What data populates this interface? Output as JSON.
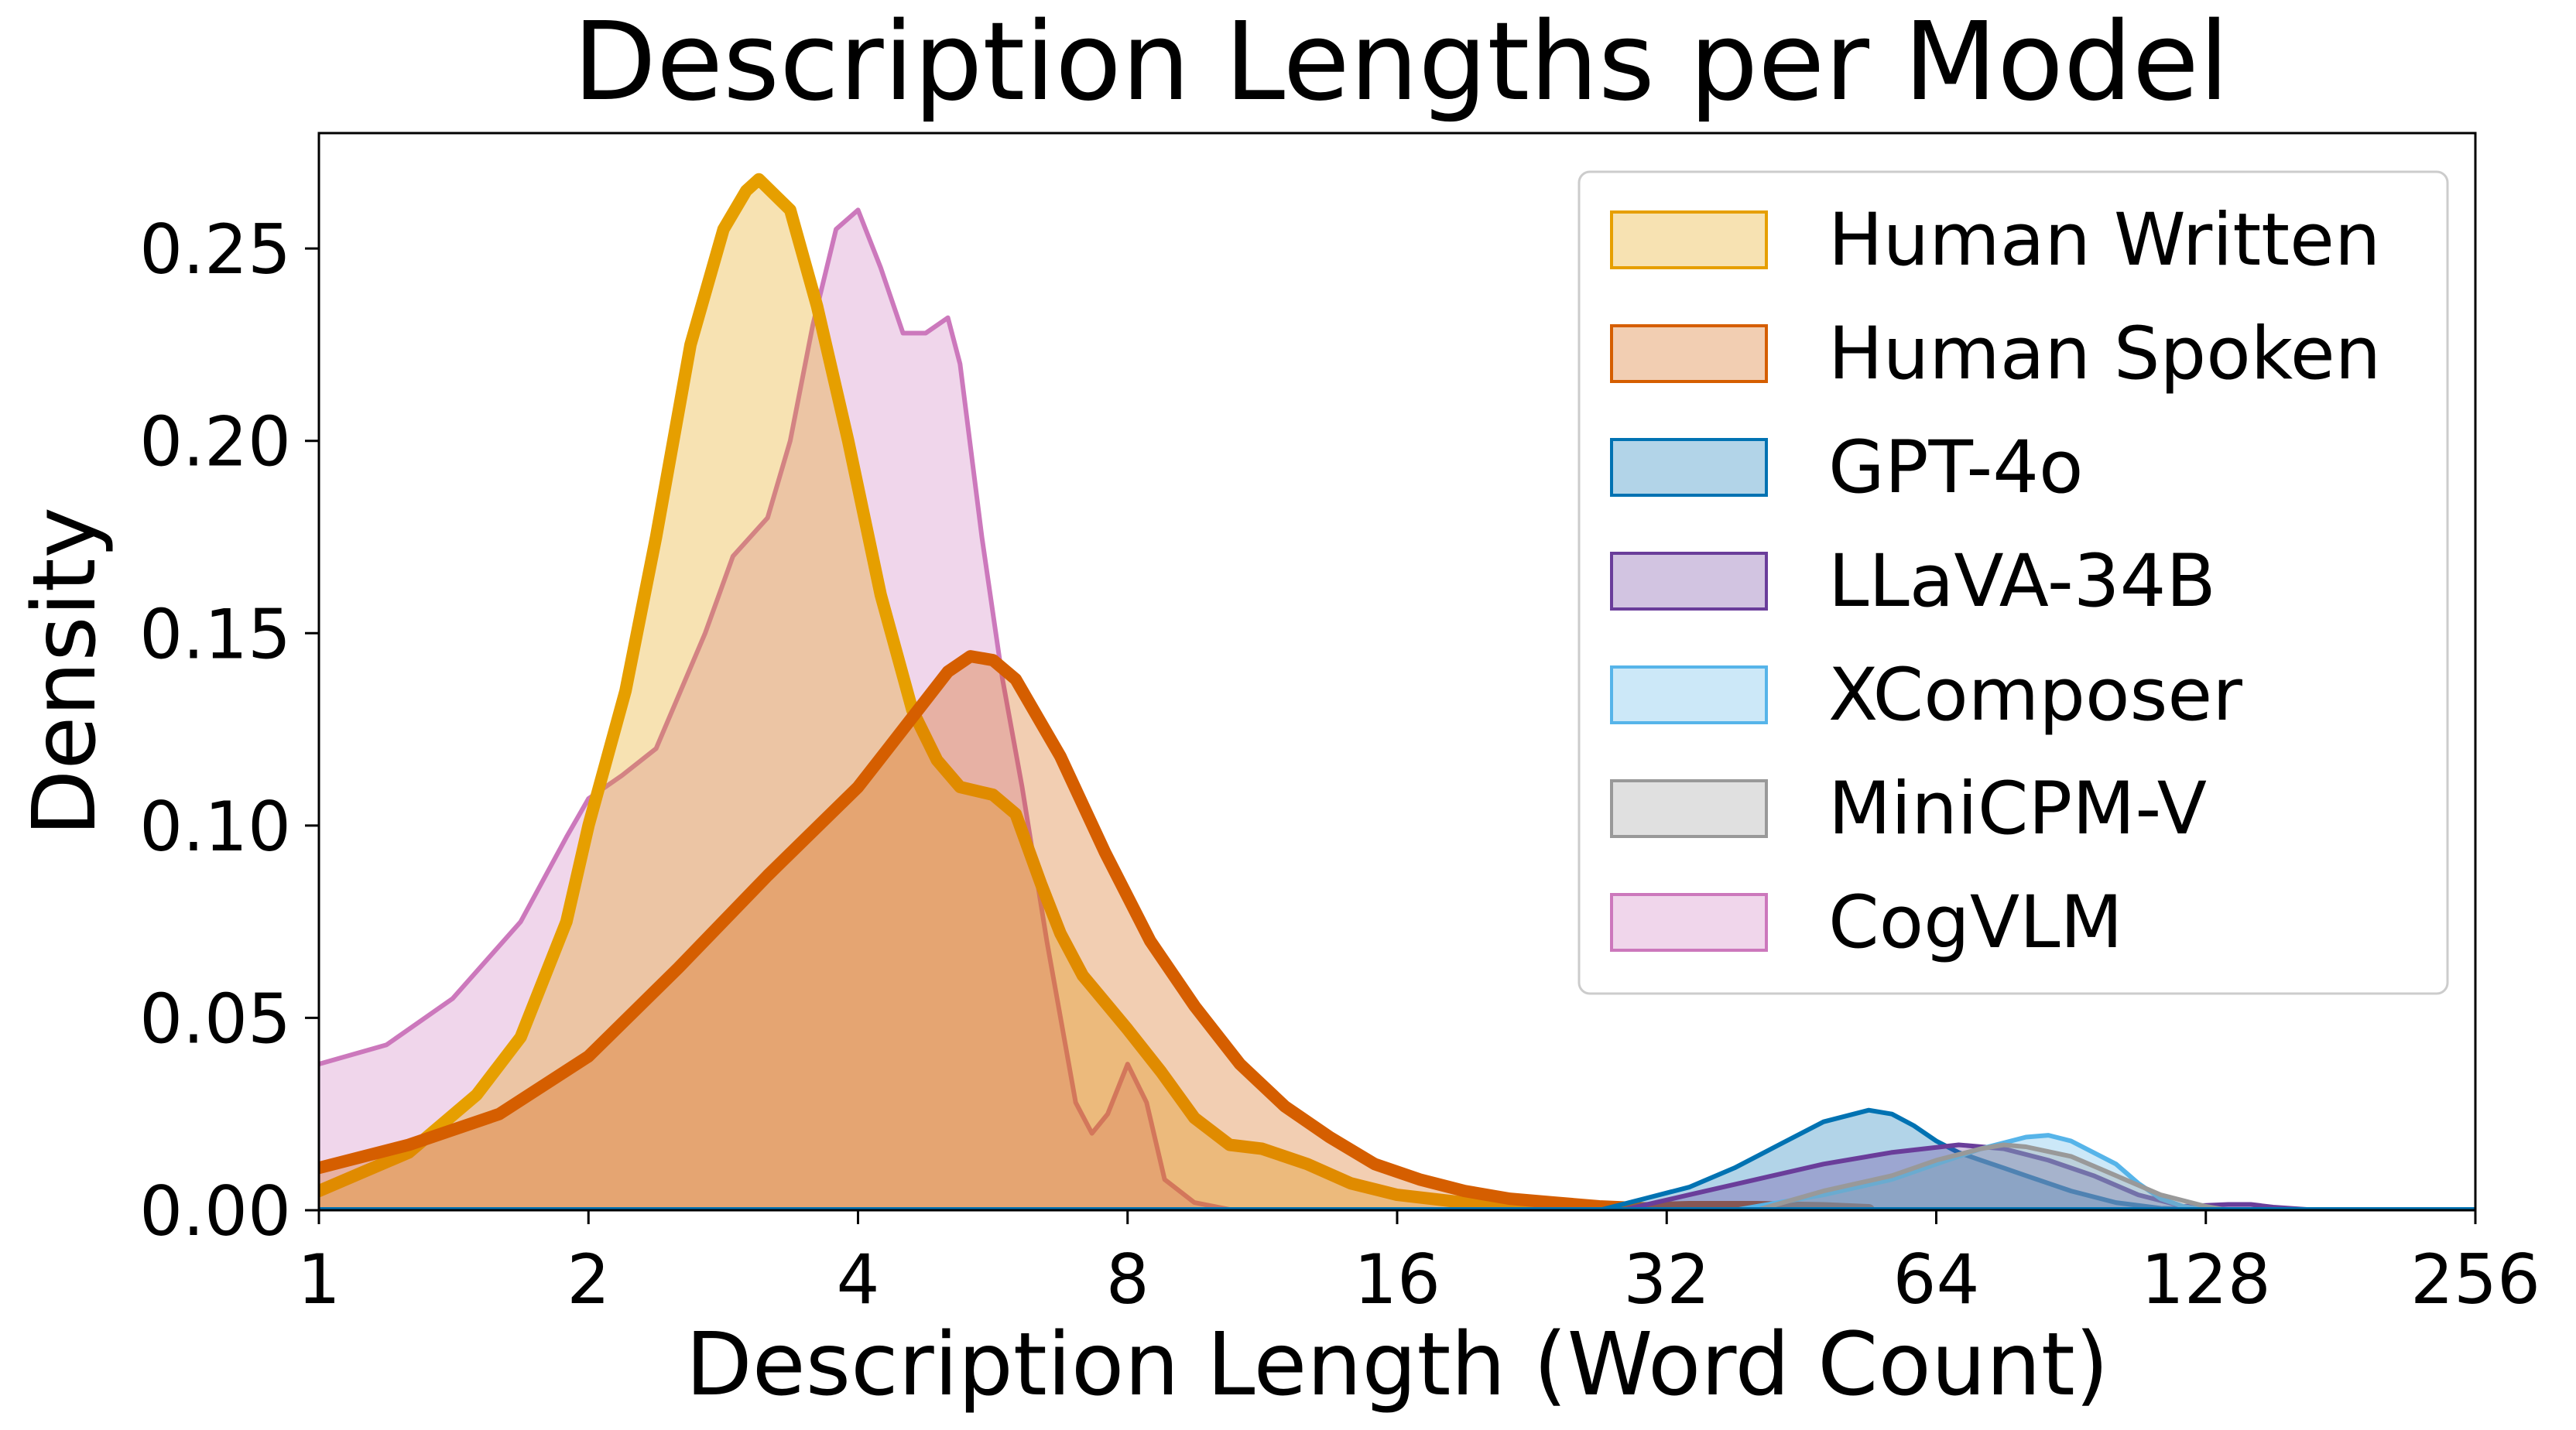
{
  "chart_data": {
    "type": "area",
    "title": "Description Lengths per Model",
    "xlabel": "Description Length (Word Count)",
    "ylabel": "Density",
    "xscale": "log2",
    "xlim": [
      1,
      256
    ],
    "ylim": [
      0,
      0.28
    ],
    "grid": false,
    "legend_position": "top-right",
    "x_ticks": [
      1,
      2,
      4,
      8,
      16,
      32,
      64,
      128,
      256
    ],
    "x_tick_labels": [
      "1",
      "2",
      "4",
      "8",
      "16",
      "32",
      "64",
      "128",
      "256"
    ],
    "y_ticks": [
      0,
      0.05,
      0.1,
      0.15,
      0.2,
      0.25
    ],
    "y_tick_labels": [
      "0.00",
      "0.05",
      "0.10",
      "0.15",
      "0.20",
      "0.25"
    ],
    "series": [
      {
        "name": "CogVLM",
        "color": "#CC78BC",
        "emphasized": false,
        "points": [
          [
            1,
            0.038
          ],
          [
            1.19,
            0.043
          ],
          [
            1.41,
            0.055
          ],
          [
            1.68,
            0.075
          ],
          [
            1.89,
            0.097
          ],
          [
            2,
            0.107
          ],
          [
            2.18,
            0.113
          ],
          [
            2.38,
            0.12
          ],
          [
            2.7,
            0.15
          ],
          [
            2.9,
            0.17
          ],
          [
            3.17,
            0.18
          ],
          [
            3.36,
            0.2
          ],
          [
            3.56,
            0.23
          ],
          [
            3.78,
            0.255
          ],
          [
            4,
            0.26
          ],
          [
            4.24,
            0.245
          ],
          [
            4.49,
            0.228
          ],
          [
            4.76,
            0.228
          ],
          [
            5.04,
            0.232
          ],
          [
            5.2,
            0.22
          ],
          [
            5.5,
            0.175
          ],
          [
            5.8,
            0.138
          ],
          [
            6.1,
            0.11
          ],
          [
            6.5,
            0.07
          ],
          [
            7.0,
            0.028
          ],
          [
            7.3,
            0.02
          ],
          [
            7.6,
            0.025
          ],
          [
            8,
            0.038
          ],
          [
            8.4,
            0.028
          ],
          [
            8.8,
            0.008
          ],
          [
            9.5,
            0.002
          ],
          [
            10.5,
            0
          ]
        ]
      },
      {
        "name": "Human Written",
        "color": "#E69F00",
        "emphasized": true,
        "points": [
          [
            1,
            0.005
          ],
          [
            1.26,
            0.015
          ],
          [
            1.5,
            0.03
          ],
          [
            1.68,
            0.045
          ],
          [
            1.89,
            0.075
          ],
          [
            2,
            0.1
          ],
          [
            2.2,
            0.135
          ],
          [
            2.38,
            0.175
          ],
          [
            2.6,
            0.225
          ],
          [
            2.83,
            0.255
          ],
          [
            3,
            0.265
          ],
          [
            3.1,
            0.268
          ],
          [
            3.36,
            0.26
          ],
          [
            3.6,
            0.235
          ],
          [
            3.9,
            0.2
          ],
          [
            4.24,
            0.16
          ],
          [
            4.6,
            0.13
          ],
          [
            4.9,
            0.117
          ],
          [
            5.2,
            0.11
          ],
          [
            5.66,
            0.108
          ],
          [
            6.0,
            0.103
          ],
          [
            6.4,
            0.085
          ],
          [
            6.73,
            0.072
          ],
          [
            7.13,
            0.061
          ],
          [
            8,
            0.047
          ],
          [
            8.72,
            0.036
          ],
          [
            9.5,
            0.024
          ],
          [
            10.4,
            0.017
          ],
          [
            11.3,
            0.016
          ],
          [
            12.7,
            0.012
          ],
          [
            14.2,
            0.007
          ],
          [
            16,
            0.004
          ],
          [
            19,
            0.002
          ],
          [
            22.6,
            0.001
          ],
          [
            26,
            0
          ]
        ]
      },
      {
        "name": "Human Spoken",
        "color": "#D55E00",
        "emphasized": true,
        "points": [
          [
            1,
            0.011
          ],
          [
            1.26,
            0.017
          ],
          [
            1.59,
            0.025
          ],
          [
            2,
            0.04
          ],
          [
            2.52,
            0.063
          ],
          [
            3.17,
            0.087
          ],
          [
            4,
            0.11
          ],
          [
            4.49,
            0.125
          ],
          [
            5.04,
            0.14
          ],
          [
            5.34,
            0.144
          ],
          [
            5.66,
            0.143
          ],
          [
            6.0,
            0.138
          ],
          [
            6.73,
            0.118
          ],
          [
            7.55,
            0.093
          ],
          [
            8.48,
            0.07
          ],
          [
            9.51,
            0.053
          ],
          [
            10.68,
            0.038
          ],
          [
            11.99,
            0.027
          ],
          [
            13.45,
            0.019
          ],
          [
            15.1,
            0.012
          ],
          [
            16.95,
            0.008
          ],
          [
            19.03,
            0.005
          ],
          [
            21.36,
            0.003
          ],
          [
            23.97,
            0.002
          ],
          [
            26.91,
            0.001
          ],
          [
            30.2,
            0.0005
          ],
          [
            33.9,
            0.0008
          ],
          [
            40.3,
            0.0008
          ],
          [
            47.9,
            0.0005
          ],
          [
            53.8,
            0
          ]
        ]
      },
      {
        "name": "GPT-4o",
        "color": "#0072B2",
        "emphasized": false,
        "points": [
          [
            26.9,
            0
          ],
          [
            30.2,
            0.003
          ],
          [
            33.9,
            0.006
          ],
          [
            38.1,
            0.011
          ],
          [
            42.7,
            0.017
          ],
          [
            47.9,
            0.023
          ],
          [
            53.8,
            0.026
          ],
          [
            57.1,
            0.025
          ],
          [
            60.4,
            0.022
          ],
          [
            64,
            0.018
          ],
          [
            67.8,
            0.015
          ],
          [
            71.8,
            0.013
          ],
          [
            76.1,
            0.011
          ],
          [
            80.6,
            0.009
          ],
          [
            85.4,
            0.007
          ],
          [
            90.5,
            0.005
          ],
          [
            101.6,
            0.002
          ],
          [
            114,
            0.0005
          ],
          [
            128,
            0.0002
          ],
          [
            143.7,
            0
          ]
        ]
      },
      {
        "name": "LLaVA-34B",
        "color": "#6A3D9A",
        "emphasized": false,
        "points": [
          [
            28.5,
            0
          ],
          [
            33.9,
            0.004
          ],
          [
            40.3,
            0.008
          ],
          [
            47.9,
            0.012
          ],
          [
            57,
            0.015
          ],
          [
            67.8,
            0.017
          ],
          [
            76.1,
            0.016
          ],
          [
            85.4,
            0.013
          ],
          [
            95.9,
            0.009
          ],
          [
            107.6,
            0.004
          ],
          [
            120.8,
            0.001
          ],
          [
            135.6,
            0.0015
          ],
          [
            143.7,
            0.0015
          ],
          [
            152.2,
            0.0008
          ],
          [
            170.9,
            0
          ]
        ]
      },
      {
        "name": "XComposer",
        "color": "#56B4E9",
        "emphasized": false,
        "points": [
          [
            38.1,
            0
          ],
          [
            47.9,
            0.004
          ],
          [
            57.1,
            0.008
          ],
          [
            64,
            0.012
          ],
          [
            71.8,
            0.016
          ],
          [
            80.6,
            0.019
          ],
          [
            85.4,
            0.0195
          ],
          [
            90.5,
            0.018
          ],
          [
            101.6,
            0.012
          ],
          [
            107.6,
            0.007
          ],
          [
            114,
            0.003
          ],
          [
            120.8,
            0.001
          ],
          [
            128,
            0
          ]
        ]
      },
      {
        "name": "MiniCPM-V",
        "color": "#999999",
        "emphasized": false,
        "points": [
          [
            40.3,
            0
          ],
          [
            47.9,
            0.005
          ],
          [
            57.1,
            0.009
          ],
          [
            64,
            0.013
          ],
          [
            71.8,
            0.016
          ],
          [
            76.1,
            0.017
          ],
          [
            80.6,
            0.0165
          ],
          [
            90.5,
            0.014
          ],
          [
            101.6,
            0.009
          ],
          [
            114,
            0.004
          ],
          [
            128,
            0.001
          ],
          [
            135.6,
            0
          ]
        ]
      }
    ],
    "legend": [
      {
        "name": "Human Written",
        "color": "#E69F00"
      },
      {
        "name": "Human Spoken",
        "color": "#D55E00"
      },
      {
        "name": "GPT-4o",
        "color": "#0072B2"
      },
      {
        "name": "LLaVA-34B",
        "color": "#6A3D9A"
      },
      {
        "name": "XComposer",
        "color": "#56B4E9"
      },
      {
        "name": "MiniCPM-V",
        "color": "#999999"
      },
      {
        "name": "CogVLM",
        "color": "#CC78BC"
      }
    ]
  }
}
